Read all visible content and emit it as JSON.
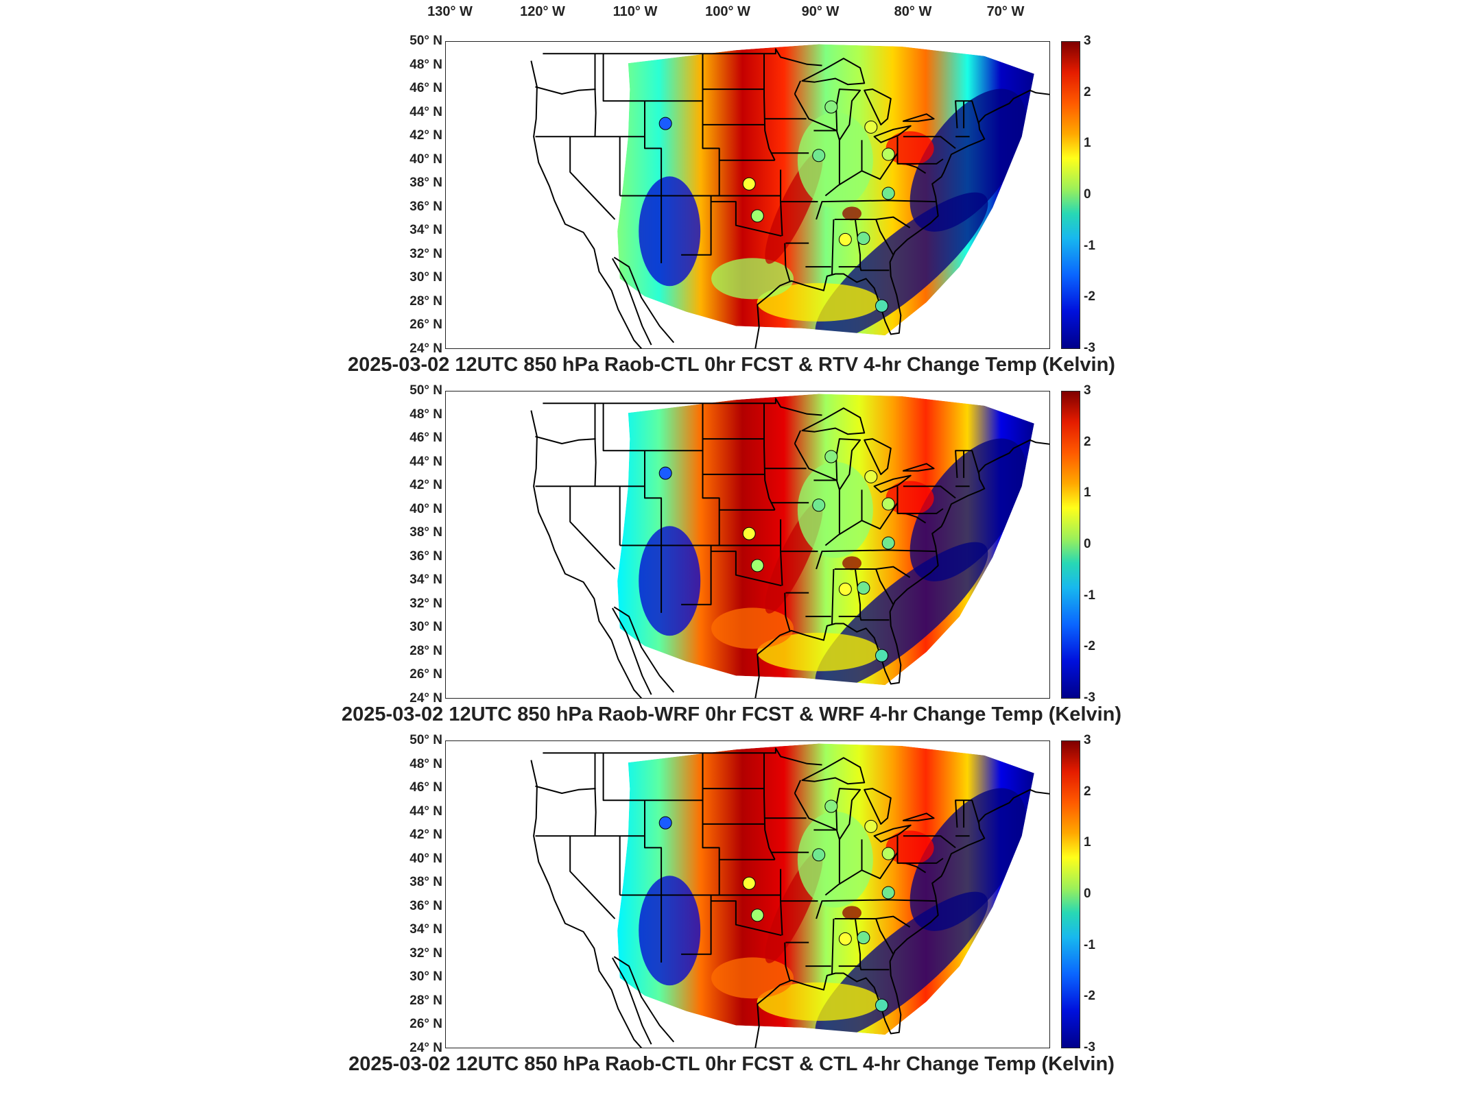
{
  "longitude_labels": [
    "130° W",
    "120° W",
    "110° W",
    "100° W",
    "90° W",
    "80° W",
    "70° W"
  ],
  "latitude_labels": [
    "50° N",
    "48° N",
    "46° N",
    "44° N",
    "42° N",
    "40° N",
    "38° N",
    "36° N",
    "34° N",
    "32° N",
    "30° N",
    "28° N",
    "26° N",
    "24° N"
  ],
  "colorbar": {
    "ticks": [
      "3",
      "2",
      "1",
      "0",
      "-1",
      "-2",
      "-3"
    ],
    "range": [
      -3,
      3
    ],
    "colormap": "jet",
    "colors": {
      "max": "#7f0000",
      "high": "#ff5a00",
      "mid_high": "#ffff1a",
      "zero": "#9cf05a",
      "mid_low": "#18b8ee",
      "low": "#0010dc",
      "min": "#00008a"
    }
  },
  "panels": [
    {
      "title": "2025-03-02 12UTC 850 hPa Raob-CTL 0hr FCST & RTV 4-hr Change Temp (Kelvin)",
      "raob_stations": [
        {
          "lat": 43.1,
          "lon": -108.5,
          "value": -2.0
        },
        {
          "lat": 38.0,
          "lon": -98.4,
          "value": 0.8
        },
        {
          "lat": 35.3,
          "lon": -97.4,
          "value": 0.2
        },
        {
          "lat": 44.5,
          "lon": -88.5,
          "value": 0.1
        },
        {
          "lat": 40.4,
          "lon": -90.0,
          "value": 0.0
        },
        {
          "lat": 42.8,
          "lon": -83.7,
          "value": 0.6
        },
        {
          "lat": 40.5,
          "lon": -81.6,
          "value": 0.3
        },
        {
          "lat": 37.2,
          "lon": -81.6,
          "value": 0.0
        },
        {
          "lat": 33.3,
          "lon": -86.8,
          "value": 0.8
        },
        {
          "lat": 33.4,
          "lon": -84.6,
          "value": 0.0
        },
        {
          "lat": 27.7,
          "lon": -82.4,
          "value": -0.3
        }
      ]
    },
    {
      "title": "2025-03-02 12UTC 850 hPa Raob-WRF 0hr FCST & WRF 4-hr Change Temp (Kelvin)",
      "raob_stations": [
        {
          "lat": 43.1,
          "lon": -108.5,
          "value": -2.0
        },
        {
          "lat": 38.0,
          "lon": -98.4,
          "value": 0.8
        },
        {
          "lat": 35.3,
          "lon": -97.4,
          "value": 0.2
        },
        {
          "lat": 44.5,
          "lon": -88.5,
          "value": 0.1
        },
        {
          "lat": 40.4,
          "lon": -90.0,
          "value": 0.0
        },
        {
          "lat": 42.8,
          "lon": -83.7,
          "value": 0.6
        },
        {
          "lat": 40.5,
          "lon": -81.6,
          "value": 0.3
        },
        {
          "lat": 37.2,
          "lon": -81.6,
          "value": 0.0
        },
        {
          "lat": 33.3,
          "lon": -86.8,
          "value": 0.8
        },
        {
          "lat": 33.4,
          "lon": -84.6,
          "value": 0.0
        },
        {
          "lat": 27.7,
          "lon": -82.4,
          "value": -0.3
        }
      ]
    },
    {
      "title": "2025-03-02 12UTC 850 hPa Raob-CTL 0hr FCST & CTL 4-hr Change Temp (Kelvin)",
      "raob_stations": [
        {
          "lat": 43.1,
          "lon": -108.5,
          "value": -2.0
        },
        {
          "lat": 38.0,
          "lon": -98.4,
          "value": 0.8
        },
        {
          "lat": 35.3,
          "lon": -97.4,
          "value": 0.2
        },
        {
          "lat": 44.5,
          "lon": -88.5,
          "value": 0.1
        },
        {
          "lat": 40.4,
          "lon": -90.0,
          "value": 0.0
        },
        {
          "lat": 42.8,
          "lon": -83.7,
          "value": 0.6
        },
        {
          "lat": 40.5,
          "lon": -81.6,
          "value": 0.3
        },
        {
          "lat": 37.2,
          "lon": -81.6,
          "value": 0.0
        },
        {
          "lat": 33.3,
          "lon": -86.8,
          "value": 0.8
        },
        {
          "lat": 33.4,
          "lon": -84.6,
          "value": 0.0
        },
        {
          "lat": 27.7,
          "lon": -82.4,
          "value": -0.3
        }
      ]
    }
  ]
}
